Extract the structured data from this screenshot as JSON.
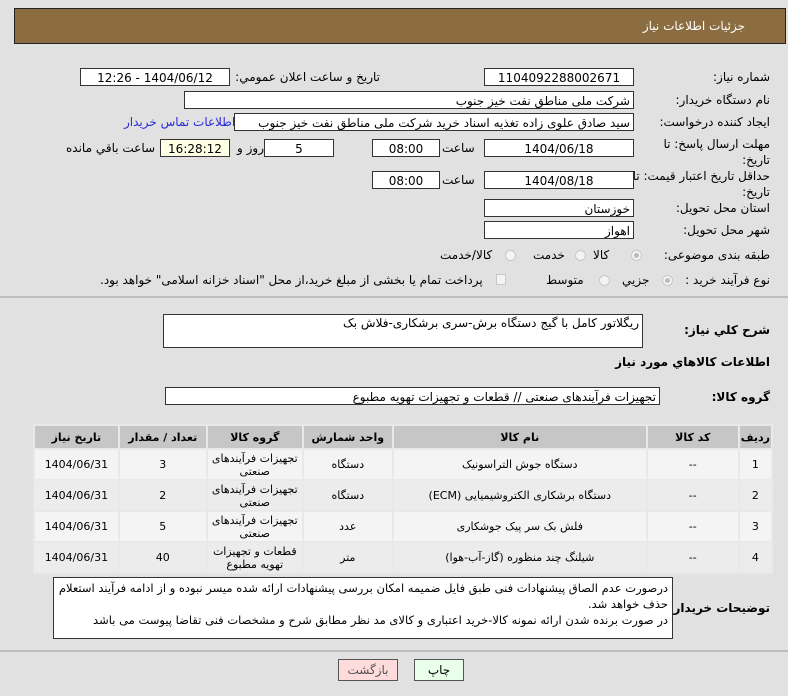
{
  "header": {
    "title": "جزئيات اطلاعات نیاز"
  },
  "form": {
    "need_number": {
      "label": "شماره نیاز:",
      "value": "1104092288002671"
    },
    "announce": {
      "label": "تاريخ و ساعت اعلان عمومي:",
      "value": "1404/06/12 - 12:26"
    },
    "buyer_org": {
      "label": "نام دستگاه خریدار:",
      "value": "شرکت ملی مناطق نفت خیز جنوب"
    },
    "creator": {
      "label": "ایجاد کننده درخواست:",
      "value": "سید صادق علوی زاده  تغذیه اسناد خرید  شرکت ملی مناطق نفت خیز جنوب",
      "contact_link": "اطلاعات تماس خریدار"
    },
    "deadline": {
      "label": "مهلت ارسال پاسخ: تا تاریخ:",
      "date": "1404/06/18",
      "time_label": "ساعت",
      "time": "08:00",
      "days": "5",
      "days_label": "روز و",
      "remaining": "16:28:12",
      "remaining_label": "ساعت باقي مانده"
    },
    "validity": {
      "label": "حداقل تاریخ اعتبار قیمت: تا تاریخ:",
      "date": "1404/08/18",
      "time_label": "ساعت",
      "time": "08:00"
    },
    "province": {
      "label": "استان محل تحویل:",
      "value": "خوزستان"
    },
    "city": {
      "label": "شهر محل تحویل:",
      "value": "اهواز"
    },
    "category": {
      "label": "طبقه بندی موضوعی:",
      "options": [
        "کالا",
        "خدمت",
        "کالا/خدمت"
      ],
      "selected": "کالا"
    },
    "process": {
      "label": "نوع فرآیند خرید :",
      "options": [
        "جزیي",
        "متوسط"
      ],
      "selected": "جزیي",
      "payment_note": "پرداخت تمام یا بخشی از مبلغ خرید،از محل \"اسناد خزانه اسلامی\" خواهد بود."
    }
  },
  "summary": {
    "label": "شرح کلي نياز:",
    "value": "ریگلاتور کامل با گیج دستگاه برش-سری برشکاری-فلاش بک"
  },
  "goods_section": {
    "title": "اطلاعات كالاهاي مورد نياز",
    "group_label": "گروه کالا:",
    "group_value": "تجهیزات فرآیندهای صنعتی //  قطعات و تجهیزات تهویه مطبوع"
  },
  "table": {
    "headers": [
      "ردیف",
      "کد کالا",
      "نام کالا",
      "واحد شمارش",
      "گروه کالا",
      "تعداد / مقدار",
      "تاریخ نیاز"
    ],
    "rows": [
      [
        "1",
        "--",
        "دستگاه جوش التراسونیک",
        "دستگاه",
        "تجهیزات فرآیندهای صنعتی",
        "3",
        "1404/06/31"
      ],
      [
        "2",
        "--",
        "دستگاه برشکاری الکتروشیمیایی (ECM)",
        "دستگاه",
        "تجهیزات فرآیندهای صنعتی",
        "2",
        "1404/06/31"
      ],
      [
        "3",
        "--",
        "فلش بک سر پیک جوشکاری",
        "عدد",
        "تجهیزات فرآیندهای صنعتی",
        "5",
        "1404/06/31"
      ],
      [
        "4",
        "--",
        "شیلنگ چند منظوره (گاز-آب-هوا)",
        "متر",
        "قطعات و تجهیزات تهویه مطبوع",
        "40",
        "1404/06/31"
      ]
    ]
  },
  "notes": {
    "label": "توضیحات خریدار:",
    "lines": [
      "درصورت عدم الصاق پیشنهادات فنی طبق فایل ضمیمه امکان بررسی پیشنهادات ارائه شده میسر نبوده و از ادامه فرآیند استعلام حذف خواهد شد.",
      "در صورت برنده شدن ارائه نمونه کالا-خرید اعتباری و کالای مد نظر مطابق شرح و مشخصات فنی تقاضا پیوست می باشد"
    ]
  },
  "buttons": {
    "print": "چاپ",
    "back": "بازگشت"
  },
  "colors": {
    "header": "#8c6d42",
    "link": "#2a2adb",
    "print_bg": "#eaffea",
    "back_bg": "#ffdcdc"
  }
}
